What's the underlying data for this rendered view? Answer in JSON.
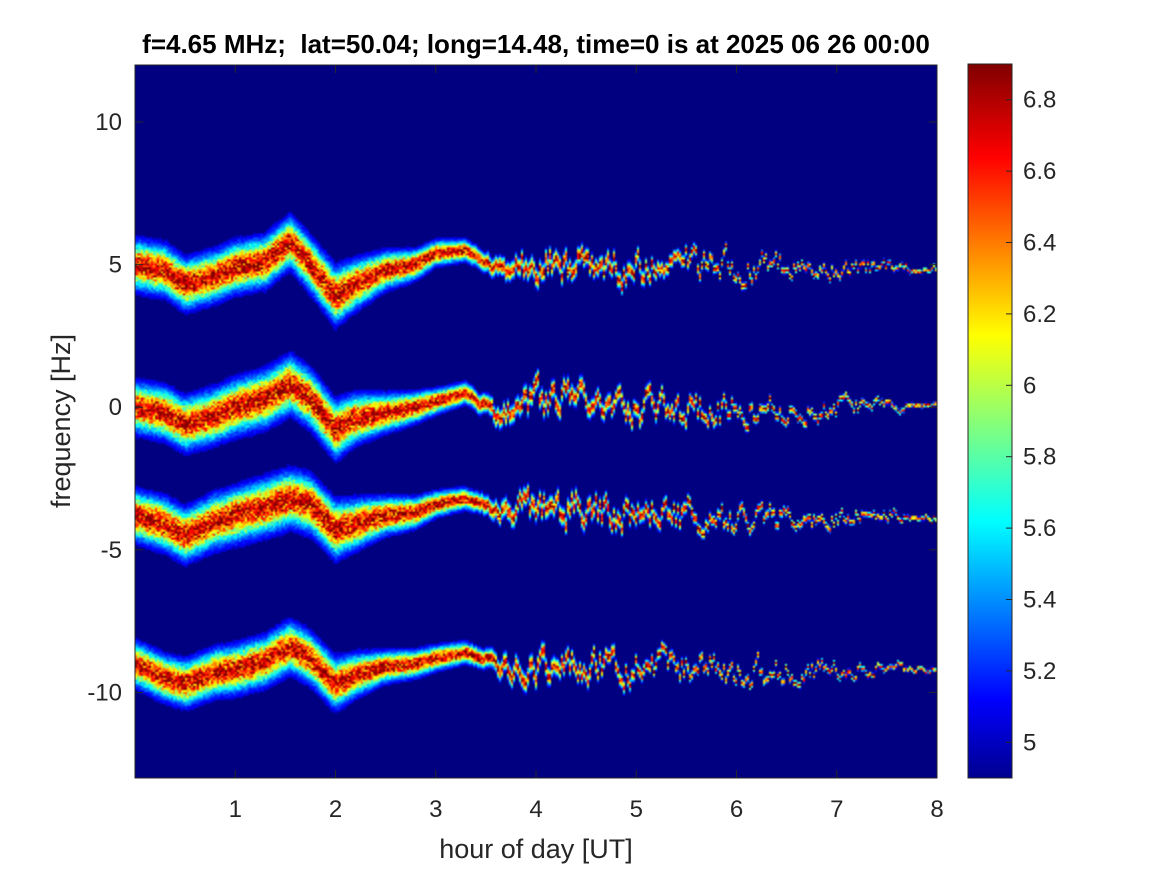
{
  "chart_data": {
    "type": "heatmap",
    "title": "f=4.65 MHz;  lat=50.04; long=14.48, time=0 is at 2025 06 26 00:00",
    "xlabel": "hour of day [UT]",
    "ylabel": "frequency [Hz]",
    "xlim": [
      0,
      8
    ],
    "ylim": [
      -13,
      12
    ],
    "x_ticks": [
      1,
      2,
      3,
      4,
      5,
      6,
      7,
      8
    ],
    "x_tick_labels": [
      "1",
      "2",
      "3",
      "4",
      "5",
      "6",
      "7",
      "8"
    ],
    "y_ticks": [
      10,
      5,
      0,
      -5,
      -10
    ],
    "y_tick_labels": [
      "10",
      "5",
      "0",
      "-5",
      "-10"
    ],
    "colorbar": {
      "colormap": "jet",
      "range": [
        4.9,
        6.9
      ],
      "ticks": [
        6.8,
        6.6,
        6.4,
        6.2,
        6,
        5.8,
        5.6,
        5.4,
        5.2,
        5
      ],
      "tick_labels": [
        "6.8",
        "6.6",
        "6.4",
        "6.2",
        "6",
        "5.8",
        "5.6",
        "5.4",
        "5.2",
        "5"
      ]
    },
    "background_color": "#00008f",
    "traces": [
      {
        "center_hz": [
          [
            0,
            5.0
          ],
          [
            0.3,
            4.8
          ],
          [
            0.5,
            4.3
          ],
          [
            0.8,
            4.6
          ],
          [
            1.0,
            4.9
          ],
          [
            1.3,
            5.1
          ],
          [
            1.55,
            5.8
          ],
          [
            1.75,
            5.0
          ],
          [
            2.0,
            3.9
          ],
          [
            2.2,
            4.3
          ],
          [
            2.5,
            4.8
          ],
          [
            2.8,
            5.0
          ],
          [
            3.0,
            5.4
          ],
          [
            3.3,
            5.5
          ],
          [
            3.6,
            5.0
          ],
          [
            4.0,
            5.0
          ],
          [
            4.5,
            5.0
          ],
          [
            5.0,
            4.9
          ],
          [
            5.5,
            5.0
          ],
          [
            6.0,
            4.9
          ],
          [
            6.5,
            4.9
          ],
          [
            7.0,
            4.9
          ],
          [
            7.5,
            4.9
          ],
          [
            8.0,
            4.9
          ]
        ],
        "halfwidth_hz": [
          [
            0,
            0.8
          ],
          [
            1.5,
            0.8
          ],
          [
            2.0,
            0.9
          ],
          [
            2.5,
            0.6
          ],
          [
            3.0,
            0.4
          ],
          [
            3.5,
            0.3
          ],
          [
            4.0,
            0.3
          ],
          [
            5.0,
            0.25
          ],
          [
            6.0,
            0.12
          ],
          [
            8.0,
            0.06
          ]
        ]
      },
      {
        "center_hz": [
          [
            0,
            0.0
          ],
          [
            0.3,
            -0.2
          ],
          [
            0.5,
            -0.6
          ],
          [
            0.8,
            -0.3
          ],
          [
            1.0,
            0.0
          ],
          [
            1.3,
            0.3
          ],
          [
            1.55,
            0.8
          ],
          [
            1.75,
            0.3
          ],
          [
            2.0,
            -0.8
          ],
          [
            2.2,
            -0.4
          ],
          [
            2.5,
            -0.2
          ],
          [
            2.8,
            0.0
          ],
          [
            3.0,
            0.2
          ],
          [
            3.3,
            0.5
          ],
          [
            3.6,
            -0.2
          ],
          [
            4.0,
            0.2
          ],
          [
            4.5,
            0.4
          ],
          [
            5.0,
            0.0
          ],
          [
            5.5,
            -0.1
          ],
          [
            6.0,
            -0.1
          ],
          [
            6.5,
            -0.1
          ],
          [
            7.0,
            0.0
          ],
          [
            7.5,
            0.1
          ],
          [
            8.0,
            0.0
          ]
        ],
        "halfwidth_hz": [
          [
            0,
            0.8
          ],
          [
            1.5,
            0.9
          ],
          [
            2.0,
            0.9
          ],
          [
            2.5,
            0.6
          ],
          [
            3.0,
            0.4
          ],
          [
            3.5,
            0.3
          ],
          [
            4.0,
            0.3
          ],
          [
            5.0,
            0.25
          ],
          [
            6.0,
            0.15
          ],
          [
            8.0,
            0.06
          ]
        ]
      },
      {
        "center_hz": [
          [
            0,
            -3.8
          ],
          [
            0.3,
            -4.1
          ],
          [
            0.5,
            -4.5
          ],
          [
            0.8,
            -4.0
          ],
          [
            1.0,
            -3.8
          ],
          [
            1.3,
            -3.5
          ],
          [
            1.55,
            -3.2
          ],
          [
            1.75,
            -3.4
          ],
          [
            2.0,
            -4.3
          ],
          [
            2.2,
            -4.1
          ],
          [
            2.5,
            -3.8
          ],
          [
            2.8,
            -3.7
          ],
          [
            3.0,
            -3.4
          ],
          [
            3.3,
            -3.2
          ],
          [
            3.6,
            -3.6
          ],
          [
            4.0,
            -3.5
          ],
          [
            4.5,
            -3.6
          ],
          [
            5.0,
            -3.9
          ],
          [
            5.5,
            -3.8
          ],
          [
            6.0,
            -3.9
          ],
          [
            6.5,
            -3.9
          ],
          [
            7.0,
            -3.9
          ],
          [
            7.5,
            -3.7
          ],
          [
            8.0,
            -3.9
          ]
        ],
        "halfwidth_hz": [
          [
            0,
            0.8
          ],
          [
            1.5,
            0.9
          ],
          [
            2.0,
            0.9
          ],
          [
            2.5,
            0.6
          ],
          [
            3.0,
            0.4
          ],
          [
            3.5,
            0.3
          ],
          [
            4.0,
            0.3
          ],
          [
            5.0,
            0.25
          ],
          [
            6.0,
            0.15
          ],
          [
            8.0,
            0.06
          ]
        ]
      },
      {
        "center_hz": [
          [
            0,
            -9.0
          ],
          [
            0.3,
            -9.5
          ],
          [
            0.5,
            -9.7
          ],
          [
            0.8,
            -9.3
          ],
          [
            1.0,
            -9.2
          ],
          [
            1.3,
            -8.9
          ],
          [
            1.55,
            -8.4
          ],
          [
            1.75,
            -8.8
          ],
          [
            2.0,
            -9.7
          ],
          [
            2.2,
            -9.4
          ],
          [
            2.5,
            -9.1
          ],
          [
            2.8,
            -9.0
          ],
          [
            3.0,
            -8.8
          ],
          [
            3.3,
            -8.6
          ],
          [
            3.6,
            -9.0
          ],
          [
            4.0,
            -9.2
          ],
          [
            4.5,
            -8.9
          ],
          [
            5.0,
            -9.2
          ],
          [
            5.5,
            -9.0
          ],
          [
            6.0,
            -9.2
          ],
          [
            6.5,
            -9.2
          ],
          [
            7.0,
            -9.2
          ],
          [
            7.5,
            -9.1
          ],
          [
            8.0,
            -9.2
          ]
        ],
        "halfwidth_hz": [
          [
            0,
            0.7
          ],
          [
            1.5,
            0.8
          ],
          [
            2.0,
            0.8
          ],
          [
            2.5,
            0.5
          ],
          [
            3.0,
            0.4
          ],
          [
            3.5,
            0.3
          ],
          [
            4.0,
            0.3
          ],
          [
            5.0,
            0.2
          ],
          [
            6.0,
            0.12
          ],
          [
            8.0,
            0.06
          ]
        ]
      }
    ]
  }
}
